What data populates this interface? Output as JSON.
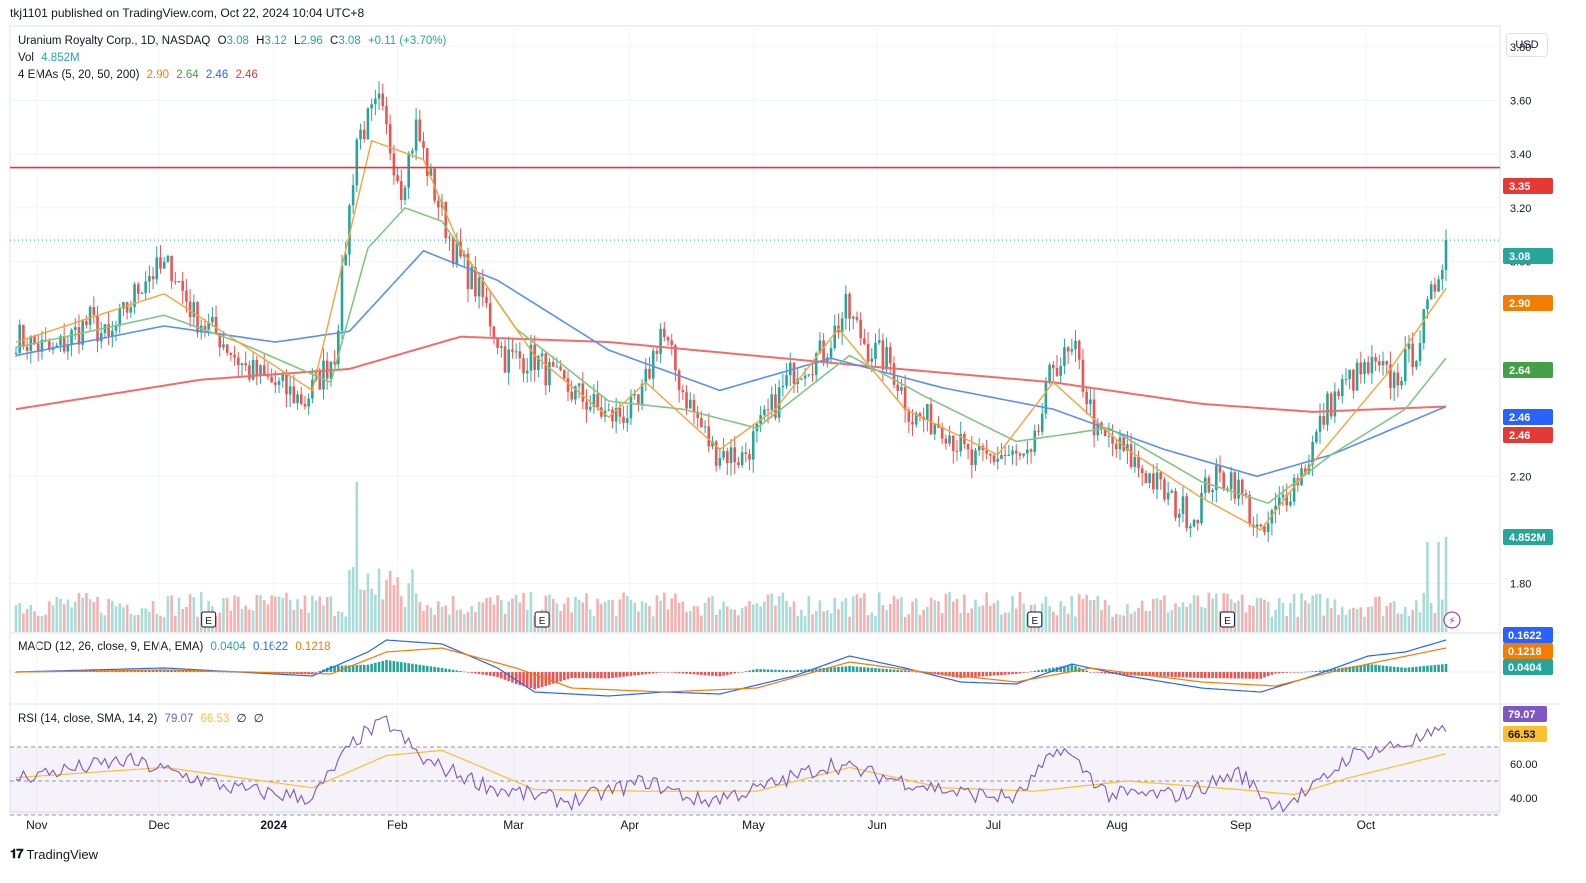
{
  "publisher": "tkj1101 published on TradingView.com, Oct 22, 2024 10:04 UTC+8",
  "footer": {
    "brand": "TradingView",
    "logo": "tradingview-logo-icon"
  },
  "currency": "USD",
  "colors": {
    "up": "#26a69a",
    "down": "#ef5350",
    "ema5": "#f7a23b",
    "ema20": "#81c784",
    "ema50": "#5b8ff0",
    "ema200": "#f26b6b",
    "hline": "#e53935"
  },
  "legend": {
    "symbol": "Uranium Royalty Corp., 1D, NASDAQ",
    "o_label": "O",
    "o": "3.08",
    "h_label": "H",
    "h": "3.12",
    "l_label": "L",
    "l": "2.96",
    "c_label": "C",
    "c": "3.08",
    "change": "+0.11 (+3.70%)",
    "vol_label": "Vol",
    "vol": "4.852M",
    "ema_label": "4 EMAs (5, 20, 50, 200)",
    "ema5": "2.90",
    "ema20": "2.64",
    "ema50": "2.46",
    "ema200": "2.46",
    "macd_label": "MACD (12, 26, close, 9, EMA, EMA)",
    "macd_hist": "0.0404",
    "macd_line": "0.1622",
    "macd_signal": "0.1218",
    "rsi_label": "RSI (14, close, SMA, 14, 2)",
    "rsi": "79.07",
    "rsi_ma": "66.53",
    "rsi_extra1": "∅",
    "rsi_extra2": "∅"
  },
  "chart_data": {
    "type": "candlestick",
    "price_axis": {
      "ticks": [
        1.8,
        2.2,
        2.6,
        3.0,
        3.2,
        3.4,
        3.6,
        3.8
      ],
      "range": [
        1.62,
        3.87
      ]
    },
    "x_axis": {
      "labels": [
        "Nov",
        "Dec",
        "2024",
        "Feb",
        "Mar",
        "Apr",
        "May",
        "Jun",
        "Jul",
        "Aug",
        "Sep",
        "Oct"
      ]
    },
    "horizontal_line": 3.35,
    "price_tags": [
      {
        "value": "3.35",
        "color": "#e53935"
      },
      {
        "value": "3.08",
        "color": "#26a69a"
      },
      {
        "value": "2.90",
        "color": "#f57c00"
      },
      {
        "value": "2.64",
        "color": "#43a047"
      },
      {
        "value": "2.46",
        "color": "#2962ff"
      },
      {
        "value": "2.46",
        "color": "#e53935"
      },
      {
        "value": "4.852M",
        "color": "#26a69a"
      }
    ],
    "series_anchors": {
      "close": [
        [
          0,
          2.72
        ],
        [
          10,
          2.66
        ],
        [
          20,
          2.78
        ],
        [
          25,
          2.7
        ],
        [
          35,
          2.95
        ],
        [
          42,
          2.98
        ],
        [
          48,
          2.8
        ],
        [
          55,
          2.72
        ],
        [
          62,
          2.6
        ],
        [
          70,
          2.54
        ],
        [
          78,
          2.48
        ],
        [
          86,
          2.66
        ],
        [
          92,
          3.46
        ],
        [
          98,
          3.58
        ],
        [
          104,
          3.28
        ],
        [
          108,
          3.5
        ],
        [
          112,
          3.3
        ],
        [
          118,
          3.05
        ],
        [
          126,
          2.86
        ],
        [
          132,
          2.64
        ],
        [
          140,
          2.64
        ],
        [
          146,
          2.55
        ],
        [
          152,
          2.5
        ],
        [
          160,
          2.42
        ],
        [
          168,
          2.45
        ],
        [
          174,
          2.75
        ],
        [
          180,
          2.52
        ],
        [
          188,
          2.3
        ],
        [
          196,
          2.27
        ],
        [
          202,
          2.4
        ],
        [
          210,
          2.6
        ],
        [
          218,
          2.66
        ],
        [
          224,
          2.82
        ],
        [
          230,
          2.68
        ],
        [
          236,
          2.62
        ],
        [
          242,
          2.42
        ],
        [
          250,
          2.4
        ],
        [
          258,
          2.25
        ],
        [
          266,
          2.28
        ],
        [
          274,
          2.25
        ],
        [
          280,
          2.62
        ],
        [
          286,
          2.65
        ],
        [
          292,
          2.35
        ],
        [
          298,
          2.3
        ],
        [
          306,
          2.2
        ],
        [
          312,
          2.1
        ],
        [
          318,
          2.05
        ],
        [
          322,
          2.18
        ],
        [
          328,
          2.2
        ],
        [
          332,
          2.1
        ],
        [
          336,
          1.96
        ],
        [
          342,
          2.12
        ],
        [
          348,
          2.24
        ],
        [
          354,
          2.46
        ],
        [
          360,
          2.56
        ],
        [
          366,
          2.6
        ],
        [
          372,
          2.56
        ],
        [
          378,
          2.68
        ],
        [
          382,
          2.86
        ],
        [
          386,
          3.08
        ]
      ],
      "ema5": [
        [
          0,
          2.7
        ],
        [
          40,
          2.88
        ],
        [
          60,
          2.7
        ],
        [
          80,
          2.52
        ],
        [
          90,
          3.1
        ],
        [
          96,
          3.45
        ],
        [
          110,
          3.38
        ],
        [
          120,
          3.05
        ],
        [
          140,
          2.65
        ],
        [
          160,
          2.42
        ],
        [
          170,
          2.55
        ],
        [
          190,
          2.3
        ],
        [
          205,
          2.45
        ],
        [
          222,
          2.75
        ],
        [
          240,
          2.45
        ],
        [
          265,
          2.28
        ],
        [
          280,
          2.55
        ],
        [
          300,
          2.3
        ],
        [
          320,
          2.12
        ],
        [
          336,
          2.0
        ],
        [
          350,
          2.25
        ],
        [
          370,
          2.58
        ],
        [
          386,
          2.9
        ]
      ],
      "ema20": [
        [
          0,
          2.68
        ],
        [
          40,
          2.8
        ],
        [
          60,
          2.7
        ],
        [
          85,
          2.55
        ],
        [
          95,
          3.05
        ],
        [
          105,
          3.2
        ],
        [
          115,
          3.15
        ],
        [
          135,
          2.75
        ],
        [
          160,
          2.48
        ],
        [
          180,
          2.45
        ],
        [
          200,
          2.38
        ],
        [
          225,
          2.65
        ],
        [
          245,
          2.5
        ],
        [
          270,
          2.33
        ],
        [
          295,
          2.38
        ],
        [
          320,
          2.18
        ],
        [
          338,
          2.1
        ],
        [
          355,
          2.28
        ],
        [
          375,
          2.45
        ],
        [
          386,
          2.64
        ]
      ],
      "ema50": [
        [
          0,
          2.65
        ],
        [
          40,
          2.76
        ],
        [
          70,
          2.7
        ],
        [
          90,
          2.74
        ],
        [
          110,
          3.04
        ],
        [
          130,
          2.93
        ],
        [
          160,
          2.67
        ],
        [
          190,
          2.52
        ],
        [
          220,
          2.64
        ],
        [
          250,
          2.53
        ],
        [
          280,
          2.45
        ],
        [
          310,
          2.3
        ],
        [
          335,
          2.2
        ],
        [
          355,
          2.28
        ],
        [
          386,
          2.46
        ]
      ],
      "ema200": [
        [
          0,
          2.45
        ],
        [
          50,
          2.56
        ],
        [
          90,
          2.6
        ],
        [
          120,
          2.72
        ],
        [
          160,
          2.7
        ],
        [
          230,
          2.61
        ],
        [
          280,
          2.55
        ],
        [
          320,
          2.47
        ],
        [
          350,
          2.44
        ],
        [
          386,
          2.46
        ]
      ],
      "macd": [
        [
          0,
          0.0
        ],
        [
          40,
          0.02
        ],
        [
          80,
          -0.02
        ],
        [
          95,
          0.1
        ],
        [
          100,
          0.16
        ],
        [
          115,
          0.14
        ],
        [
          130,
          0.02
        ],
        [
          140,
          -0.1
        ],
        [
          160,
          -0.12
        ],
        [
          175,
          -0.1
        ],
        [
          190,
          -0.11
        ],
        [
          210,
          -0.02
        ],
        [
          225,
          0.08
        ],
        [
          240,
          0.02
        ],
        [
          255,
          -0.05
        ],
        [
          270,
          -0.06
        ],
        [
          285,
          0.04
        ],
        [
          300,
          -0.02
        ],
        [
          320,
          -0.08
        ],
        [
          336,
          -0.1
        ],
        [
          350,
          -0.02
        ],
        [
          365,
          0.08
        ],
        [
          375,
          0.1
        ],
        [
          386,
          0.16
        ]
      ],
      "signal": [
        [
          0,
          0.0
        ],
        [
          40,
          0.01
        ],
        [
          85,
          -0.01
        ],
        [
          100,
          0.1
        ],
        [
          115,
          0.12
        ],
        [
          135,
          0.02
        ],
        [
          150,
          -0.08
        ],
        [
          175,
          -0.1
        ],
        [
          200,
          -0.08
        ],
        [
          225,
          0.05
        ],
        [
          245,
          0.0
        ],
        [
          270,
          -0.05
        ],
        [
          290,
          0.02
        ],
        [
          320,
          -0.05
        ],
        [
          340,
          -0.07
        ],
        [
          355,
          0.0
        ],
        [
          370,
          0.06
        ],
        [
          386,
          0.12
        ]
      ],
      "rsi": [
        [
          0,
          52
        ],
        [
          30,
          62
        ],
        [
          60,
          45
        ],
        [
          80,
          40
        ],
        [
          92,
          75
        ],
        [
          100,
          85
        ],
        [
          110,
          62
        ],
        [
          130,
          45
        ],
        [
          150,
          38
        ],
        [
          170,
          50
        ],
        [
          185,
          38
        ],
        [
          200,
          45
        ],
        [
          220,
          60
        ],
        [
          235,
          52
        ],
        [
          255,
          43
        ],
        [
          270,
          40
        ],
        [
          282,
          70
        ],
        [
          295,
          42
        ],
        [
          315,
          42
        ],
        [
          330,
          55
        ],
        [
          340,
          35
        ],
        [
          350,
          45
        ],
        [
          360,
          65
        ],
        [
          375,
          72
        ],
        [
          386,
          79
        ]
      ],
      "rsi_ma": [
        [
          0,
          52
        ],
        [
          40,
          58
        ],
        [
          80,
          46
        ],
        [
          100,
          65
        ],
        [
          115,
          68
        ],
        [
          140,
          45
        ],
        [
          170,
          44
        ],
        [
          200,
          44
        ],
        [
          225,
          58
        ],
        [
          250,
          46
        ],
        [
          275,
          44
        ],
        [
          300,
          50
        ],
        [
          330,
          45
        ],
        [
          345,
          42
        ],
        [
          360,
          52
        ],
        [
          386,
          66
        ]
      ]
    },
    "macd_axis": {
      "tags": [
        {
          "value": "0.1622",
          "color": "#2962ff"
        },
        {
          "value": "0.1218",
          "color": "#f57c00"
        },
        {
          "value": "0.0404",
          "color": "#26a69a"
        }
      ]
    },
    "rsi_axis": {
      "ticks": [
        40.0,
        60.0
      ],
      "bands": [
        30,
        50,
        70
      ],
      "tags": [
        {
          "value": "79.07",
          "color": "#7e57c2"
        },
        {
          "value": "66.53",
          "color": "#fbc02d"
        }
      ]
    },
    "earnings_markers": [
      "E",
      "E",
      "E",
      "E"
    ]
  }
}
